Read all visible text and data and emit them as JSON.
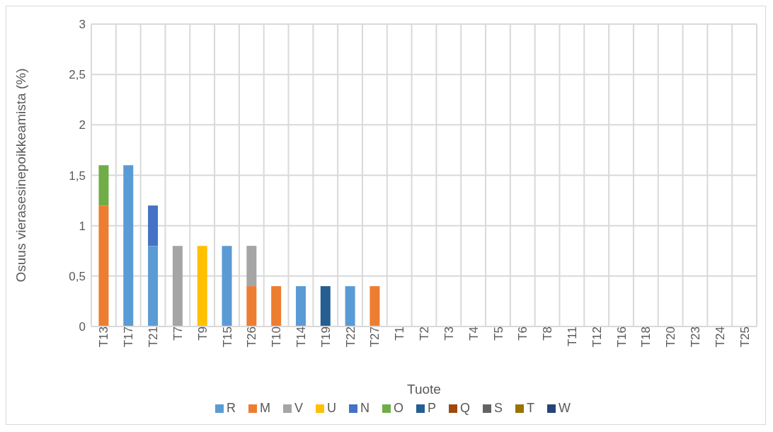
{
  "chart_data": {
    "type": "bar",
    "stacked": true,
    "xlabel": "Tuote",
    "ylabel": "Osuus vierasesinepoikkeamista (%)",
    "categories": [
      "T13",
      "T17",
      "T21",
      "T7",
      "T9",
      "T15",
      "T26",
      "T10",
      "T14",
      "T19",
      "T22",
      "T27",
      "T1",
      "T2",
      "T3",
      "T4",
      "T5",
      "T6",
      "T8",
      "T11",
      "T12",
      "T16",
      "T18",
      "T20",
      "T23",
      "T24",
      "T25"
    ],
    "series": [
      {
        "name": "R",
        "color": "#5b9bd5",
        "values": [
          null,
          1.6,
          0.8,
          null,
          null,
          0.8,
          null,
          null,
          0.4,
          null,
          0.4,
          null,
          null,
          null,
          null,
          null,
          null,
          null,
          null,
          null,
          null,
          null,
          null,
          null,
          null,
          null,
          null
        ]
      },
      {
        "name": "M",
        "color": "#ed7d31",
        "values": [
          1.2,
          null,
          null,
          null,
          null,
          null,
          0.4,
          0.4,
          null,
          null,
          null,
          0.4,
          null,
          null,
          null,
          null,
          null,
          null,
          null,
          null,
          null,
          null,
          null,
          null,
          null,
          null,
          null
        ]
      },
      {
        "name": "V",
        "color": "#a5a5a5",
        "values": [
          null,
          null,
          null,
          0.8,
          null,
          null,
          0.4,
          null,
          null,
          null,
          null,
          null,
          null,
          null,
          null,
          null,
          null,
          null,
          null,
          null,
          null,
          null,
          null,
          null,
          null,
          null,
          null
        ]
      },
      {
        "name": "U",
        "color": "#ffc000",
        "values": [
          null,
          null,
          null,
          null,
          0.8,
          null,
          null,
          null,
          null,
          null,
          null,
          null,
          null,
          null,
          null,
          null,
          null,
          null,
          null,
          null,
          null,
          null,
          null,
          null,
          null,
          null,
          null
        ]
      },
      {
        "name": "N",
        "color": "#4472c4",
        "values": [
          null,
          null,
          0.4,
          null,
          null,
          null,
          null,
          null,
          null,
          null,
          null,
          null,
          null,
          null,
          null,
          null,
          null,
          null,
          null,
          null,
          null,
          null,
          null,
          null,
          null,
          null,
          null
        ]
      },
      {
        "name": "O",
        "color": "#70ad47",
        "values": [
          0.4,
          null,
          null,
          null,
          null,
          null,
          null,
          null,
          null,
          null,
          null,
          null,
          null,
          null,
          null,
          null,
          null,
          null,
          null,
          null,
          null,
          null,
          null,
          null,
          null,
          null,
          null
        ]
      },
      {
        "name": "P",
        "color": "#255e91",
        "values": [
          null,
          null,
          null,
          null,
          null,
          null,
          null,
          null,
          null,
          0.4,
          null,
          null,
          null,
          null,
          null,
          null,
          null,
          null,
          null,
          null,
          null,
          null,
          null,
          null,
          null,
          null,
          null
        ]
      },
      {
        "name": "Q",
        "color": "#9e480e",
        "values": [
          null,
          null,
          null,
          null,
          null,
          null,
          null,
          null,
          null,
          null,
          null,
          null,
          null,
          null,
          null,
          null,
          null,
          null,
          null,
          null,
          null,
          null,
          null,
          null,
          null,
          null,
          null
        ]
      },
      {
        "name": "S",
        "color": "#636363",
        "values": [
          null,
          null,
          null,
          null,
          null,
          null,
          null,
          null,
          null,
          null,
          null,
          null,
          null,
          null,
          null,
          null,
          null,
          null,
          null,
          null,
          null,
          null,
          null,
          null,
          null,
          null,
          null
        ]
      },
      {
        "name": "T",
        "color": "#997300",
        "values": [
          null,
          null,
          null,
          null,
          null,
          null,
          null,
          null,
          null,
          null,
          null,
          null,
          null,
          null,
          null,
          null,
          null,
          null,
          null,
          null,
          null,
          null,
          null,
          null,
          null,
          null,
          null
        ]
      },
      {
        "name": "W",
        "color": "#264478",
        "values": [
          null,
          null,
          null,
          null,
          null,
          null,
          null,
          null,
          null,
          null,
          null,
          null,
          null,
          null,
          null,
          null,
          null,
          null,
          null,
          null,
          null,
          null,
          null,
          null,
          null,
          null,
          null
        ]
      }
    ],
    "ylim": [
      0,
      3
    ],
    "yticks": [
      0,
      {
        "value": 0.5,
        "label": "0,5"
      },
      1,
      {
        "value": 1.5,
        "label": "1,5"
      },
      2,
      {
        "value": 2.5,
        "label": "2,5"
      },
      3
    ],
    "grid": true,
    "legend": "bottom"
  }
}
